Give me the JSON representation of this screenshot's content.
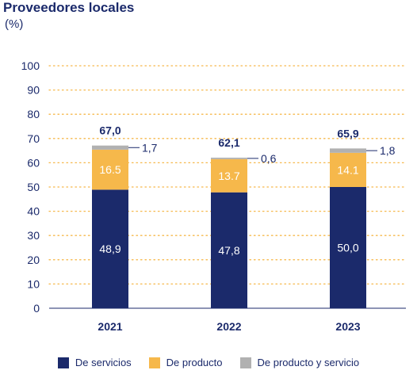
{
  "chart_data": {
    "type": "bar",
    "stacked": true,
    "title": "Proveedores locales",
    "unit_label": "(%)",
    "categories": [
      "2021",
      "2022",
      "2023"
    ],
    "series": [
      {
        "name": "De servicios",
        "color": "#1b2a6b",
        "values": [
          48.9,
          47.8,
          50.0
        ],
        "labels": [
          "48,9",
          "47,8",
          "50,0"
        ],
        "label_color": "#ffffff"
      },
      {
        "name": "De producto",
        "color": "#f6b84b",
        "values": [
          16.5,
          13.7,
          14.1
        ],
        "labels": [
          "16.5",
          "13.7",
          "14.1"
        ],
        "label_color": "#ffffff"
      },
      {
        "name": "De producto y servicio",
        "color": "#b1b1b1",
        "values": [
          1.7,
          0.6,
          1.8
        ],
        "labels": [
          "1,7",
          "0,6",
          "1,8"
        ],
        "label_color": "#1b2a6b"
      }
    ],
    "totals": [
      "67,0",
      "62,1",
      "65,9"
    ],
    "ylim": [
      0,
      100
    ],
    "yticks": [
      "0",
      "10",
      "20",
      "30",
      "40",
      "50",
      "60",
      "70",
      "80",
      "90",
      "100"
    ],
    "grid": true,
    "legend_position": "bottom"
  }
}
